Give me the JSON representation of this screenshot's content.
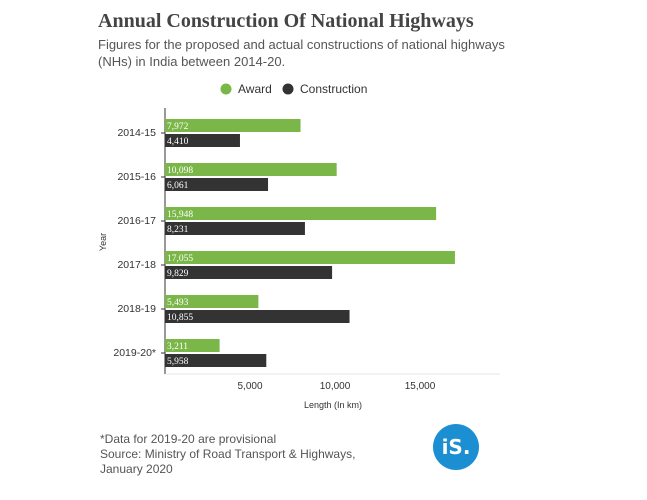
{
  "header": {
    "title": "Annual Construction Of National Highways",
    "subtitle": "Figures for the proposed and actual constructions of national highways (NHs) in India between 2014-20."
  },
  "footnote": {
    "note": "*Data for 2019-20 are provisional",
    "source_line1": "Source: Ministry of Road Transport & Highways,",
    "source_line2": "January 2020"
  },
  "logo": {
    "text": "iS."
  },
  "colors": {
    "award": "#7ab648",
    "construction": "#333333",
    "logo_bg": "#1b8fd2"
  },
  "chart_data": {
    "type": "bar",
    "orientation": "horizontal",
    "title": "Annual Construction Of National Highways",
    "xlabel": "Length (In km)",
    "ylabel": "Year",
    "xlim": [
      0,
      18500
    ],
    "xticks": [
      5000,
      10000,
      15000
    ],
    "xtick_labels": [
      "5,000",
      "10,000",
      "15,000"
    ],
    "legend_position": "top",
    "categories": [
      "2014-15",
      "2015-16",
      "2016-17",
      "2017-18",
      "2018-19",
      "2019-20*"
    ],
    "series": [
      {
        "name": "Award",
        "color": "#7ab648",
        "values": [
          7972,
          10098,
          15948,
          17055,
          5493,
          3211
        ],
        "labels": [
          "7,972",
          "10,098",
          "15,948",
          "17,055",
          "5,493",
          "3,211"
        ]
      },
      {
        "name": "Construction",
        "color": "#333333",
        "values": [
          4410,
          6061,
          8231,
          9829,
          10855,
          5958
        ],
        "labels": [
          "4,410",
          "6,061",
          "8,231",
          "9,829",
          "10,855",
          "5,958"
        ]
      }
    ]
  }
}
